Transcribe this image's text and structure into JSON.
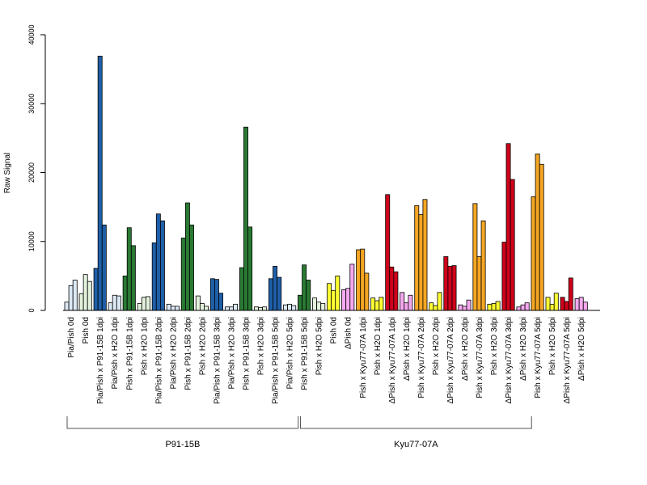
{
  "chart_data": {
    "type": "bar",
    "ylabel": "Raw Signal",
    "ylim": [
      0,
      40000
    ],
    "yticks": [
      0,
      10000,
      20000,
      30000,
      40000
    ],
    "groups": [
      {
        "name": "P91-15B",
        "first": 0,
        "last": 15
      },
      {
        "name": "Kyu77-07A",
        "first": 16,
        "last": 31
      }
    ],
    "categories": [
      {
        "label": "Pia/Pish 0d",
        "color": "#dce9f5",
        "values": [
          1200,
          3600,
          4400
        ]
      },
      {
        "label": "Pish 0d",
        "color": "#e3f2dc",
        "values": [
          2400,
          5200,
          4200
        ]
      },
      {
        "label": "Pia/Pish x P91-15B 1dpi",
        "color": "#1f5fa8",
        "values": [
          6100,
          36900,
          12400
        ]
      },
      {
        "label": "Pia/Pish x H2O 1dpi",
        "color": "#dce9f5",
        "values": [
          1100,
          2200,
          2100
        ]
      },
      {
        "label": "Pish x P91-15B 1dpi",
        "color": "#2a7a34",
        "values": [
          5000,
          12000,
          9400
        ]
      },
      {
        "label": "Pish x H2O 1dpi",
        "color": "#e3f2dc",
        "values": [
          1000,
          1900,
          2000
        ]
      },
      {
        "label": "Pia/Pish x P91-15B 2dpi",
        "color": "#1f5fa8",
        "values": [
          9800,
          14000,
          13000
        ]
      },
      {
        "label": "Pia/Pish x H2O 2dpi",
        "color": "#dce9f5",
        "values": [
          900,
          600,
          600
        ]
      },
      {
        "label": "Pish x P91-15B 2dpi",
        "color": "#2a7a34",
        "values": [
          10500,
          15600,
          12400
        ]
      },
      {
        "label": "Pish x H2O 2dpi",
        "color": "#e3f2dc",
        "values": [
          2100,
          1000,
          600
        ]
      },
      {
        "label": "Pia/Pish x P91-15B 3dpi",
        "color": "#1f5fa8",
        "values": [
          4600,
          4500,
          2500
        ]
      },
      {
        "label": "Pia/Pish x H2O 3dpi",
        "color": "#dce9f5",
        "values": [
          500,
          500,
          900
        ]
      },
      {
        "label": "Pish x P91-15B 3dpi",
        "color": "#2a7a34",
        "values": [
          6200,
          26600,
          12100
        ]
      },
      {
        "label": "Pish x H2O 3dpi",
        "color": "#e3f2dc",
        "values": [
          500,
          400,
          500
        ]
      },
      {
        "label": "Pia/Pish x P91-15B 5dpi",
        "color": "#1f5fa8",
        "values": [
          4600,
          6400,
          4800
        ]
      },
      {
        "label": "Pia/Pish x H2O 5dpi",
        "color": "#dce9f5",
        "values": [
          800,
          900,
          700
        ]
      },
      {
        "label": "Pish x P91-15B 5dpi",
        "color": "#2a7a34",
        "values": [
          2200,
          6600,
          4400
        ]
      },
      {
        "label": "Pish x H2O 5dpi",
        "color": "#e3f2dc",
        "values": [
          1800,
          1200,
          1000
        ]
      },
      {
        "label": "Pish 0d",
        "color": "#ffff33",
        "values": [
          3900,
          2900,
          5000
        ]
      },
      {
        "label": "ΔPish 0d",
        "color": "#f5a8f0",
        "values": [
          3000,
          3200,
          6700
        ]
      },
      {
        "label": "Pish x Kyu77-07A 1dpi",
        "color": "#f5a623",
        "values": [
          8800,
          8900,
          5400
        ]
      },
      {
        "label": "Pish x H2O 1dpi",
        "color": "#ffff33",
        "values": [
          1800,
          1400,
          1900
        ]
      },
      {
        "label": "ΔPish x Kyu77-07A 1dpi",
        "color": "#d0021b",
        "values": [
          16800,
          6300,
          5600
        ]
      },
      {
        "label": "ΔPish x H2O 1dpi",
        "color": "#f5a8f0",
        "values": [
          2600,
          1100,
          2200
        ]
      },
      {
        "label": "Pish x Kyu77-07A 2dpi",
        "color": "#f5a623",
        "values": [
          15200,
          13900,
          16100
        ]
      },
      {
        "label": "Pish x H2O 2dpi",
        "color": "#ffff33",
        "values": [
          1100,
          700,
          2600
        ]
      },
      {
        "label": "ΔPish x Kyu77-07A 2dpi",
        "color": "#d0021b",
        "values": [
          7800,
          6400,
          6500
        ]
      },
      {
        "label": "ΔPish x H2O 2dpi",
        "color": "#f5a8f0",
        "values": [
          800,
          600,
          1500
        ]
      },
      {
        "label": "Pish x Kyu77-07A 3dpi",
        "color": "#f5a623",
        "values": [
          15500,
          7800,
          13000
        ]
      },
      {
        "label": "Pish x H2O 3dpi",
        "color": "#ffff33",
        "values": [
          900,
          1000,
          1300
        ]
      },
      {
        "label": "ΔPish x Kyu77-07A 3dpi",
        "color": "#d0021b",
        "values": [
          9900,
          24200,
          19000
        ]
      },
      {
        "label": "ΔPish x H2O 3dpi",
        "color": "#f5a8f0",
        "values": [
          500,
          800,
          1100
        ]
      },
      {
        "label": "Pish x Kyu77-07A 5dpi",
        "color": "#f5a623",
        "values": [
          16500,
          22700,
          21200
        ]
      },
      {
        "label": "Pish x H2O 5dpi",
        "color": "#ffff33",
        "values": [
          1900,
          900,
          2500
        ]
      },
      {
        "label": "ΔPish x Kyu77-07A 5dpi",
        "color": "#d0021b",
        "values": [
          1900,
          1300,
          4700
        ]
      },
      {
        "label": "ΔPish x H2O 5dpi",
        "color": "#f5a8f0",
        "values": [
          1700,
          1900,
          1200
        ]
      }
    ]
  }
}
